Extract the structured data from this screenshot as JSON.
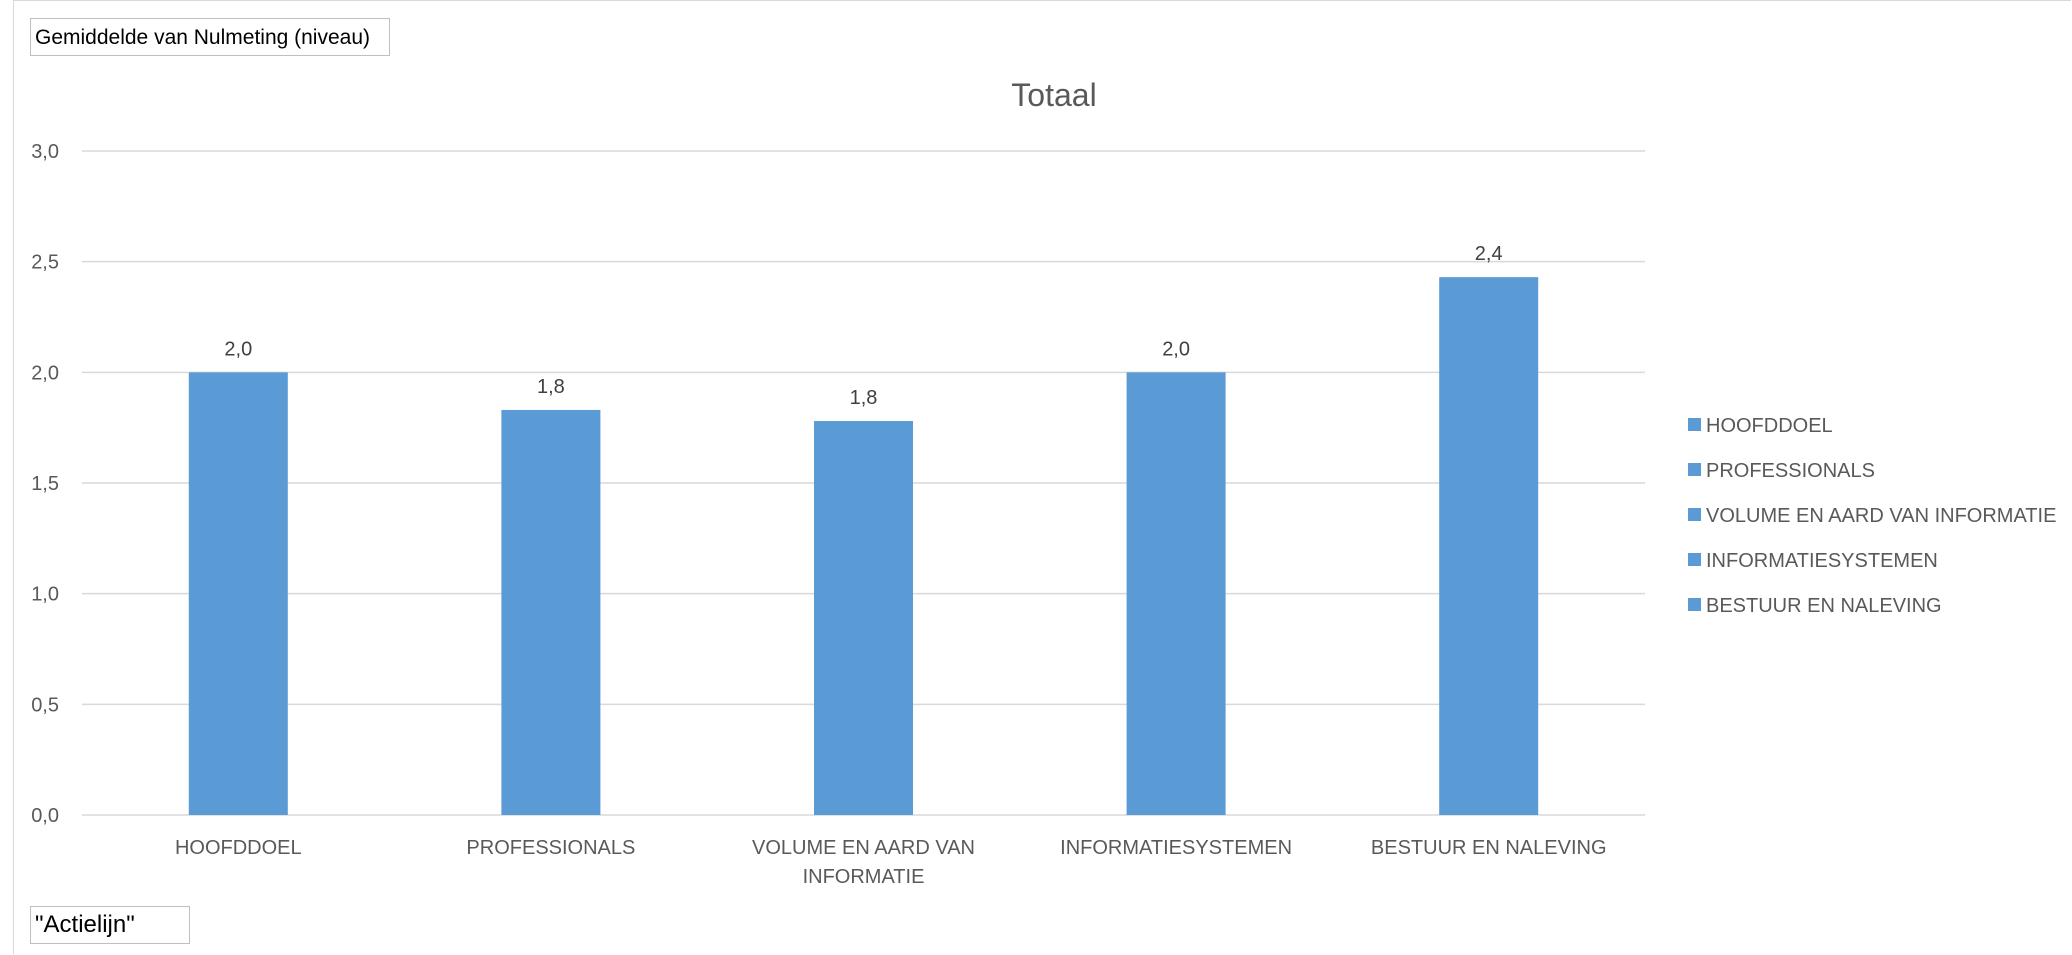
{
  "value_field": "Gemiddelde van Nulmeting (niveau)",
  "axis_field": "\"Actielijn\"",
  "colors": {
    "bar": "#5b9bd5",
    "grid": "#d9d9d9",
    "axis_text": "#595959"
  },
  "chart_data": {
    "type": "bar",
    "title": "Totaal",
    "xlabel": "",
    "ylabel": "",
    "categories": [
      "HOOFDDOEL",
      "PROFESSIONALS",
      "VOLUME EN AARD VAN INFORMATIE",
      "INFORMATIESYSTEMEN",
      "BESTUUR EN NALEVING"
    ],
    "category_label_lines": [
      [
        "HOOFDDOEL"
      ],
      [
        "PROFESSIONALS"
      ],
      [
        "VOLUME EN AARD VAN",
        "INFORMATIE"
      ],
      [
        "INFORMATIESYSTEMEN"
      ],
      [
        "BESTUUR EN NALEVING"
      ]
    ],
    "values": [
      2.0,
      1.83,
      1.78,
      2.0,
      2.43
    ],
    "data_labels": [
      "2,0",
      "1,8",
      "1,8",
      "2,0",
      "2,4"
    ],
    "ylim": [
      0,
      3
    ],
    "y_ticks": [
      0,
      0.5,
      1,
      1.5,
      2,
      2.5,
      3
    ],
    "y_tick_labels": [
      "0,0",
      "0,5",
      "1,0",
      "1,5",
      "2,0",
      "2,5",
      "3,0"
    ],
    "grid": true,
    "legend": {
      "placement": "right",
      "entries": [
        "HOOFDDOEL",
        "PROFESSIONALS",
        "VOLUME EN AARD VAN INFORMATIE",
        "INFORMATIESYSTEMEN",
        "BESTUUR EN NALEVING"
      ]
    }
  }
}
